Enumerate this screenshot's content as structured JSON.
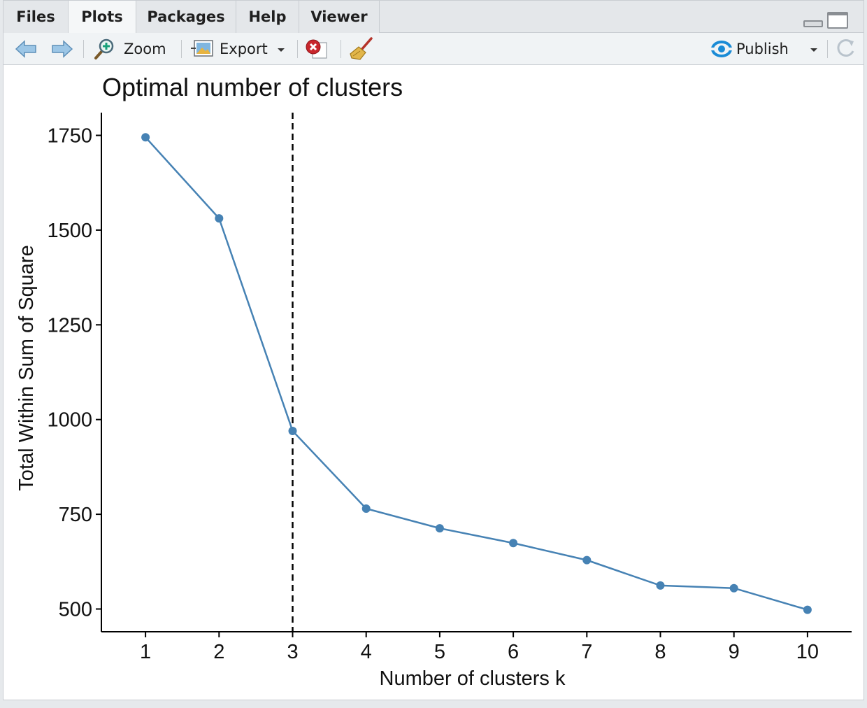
{
  "tabs": [
    {
      "label": "Files",
      "active": false
    },
    {
      "label": "Plots",
      "active": true
    },
    {
      "label": "Packages",
      "active": false
    },
    {
      "label": "Help",
      "active": false
    },
    {
      "label": "Viewer",
      "active": false
    }
  ],
  "toolbar": {
    "zoom_label": "Zoom",
    "export_label": "Export",
    "publish_label": "Publish",
    "icons": {
      "back": "arrow-left-icon",
      "forward": "arrow-right-icon",
      "zoom": "magnifier-icon",
      "export": "image-icon",
      "remove": "remove-plot-icon",
      "clear": "broom-icon",
      "publish": "publish-icon",
      "refresh": "refresh-icon"
    }
  },
  "colors": {
    "series": "#4682B4",
    "vline": "#000000",
    "accent_publish": "#1a8bd6"
  },
  "chart_data": {
    "type": "line",
    "title": "Optimal number of clusters",
    "xlabel": "Number of clusters k",
    "ylabel": "Total Within Sum of Square",
    "x": [
      1,
      2,
      3,
      4,
      5,
      6,
      7,
      8,
      9,
      10
    ],
    "y": [
      1745,
      1531,
      970,
      765,
      713,
      674,
      629,
      562,
      555,
      498
    ],
    "x_ticks": [
      "1",
      "2",
      "3",
      "4",
      "5",
      "6",
      "7",
      "8",
      "9",
      "10"
    ],
    "y_ticks": [
      500,
      750,
      1000,
      1250,
      1500,
      1750
    ],
    "vline_x": 3,
    "xlim": [
      0.4,
      10.6
    ],
    "ylim": [
      440,
      1810
    ],
    "grid": false,
    "markers": "filled-circle"
  }
}
